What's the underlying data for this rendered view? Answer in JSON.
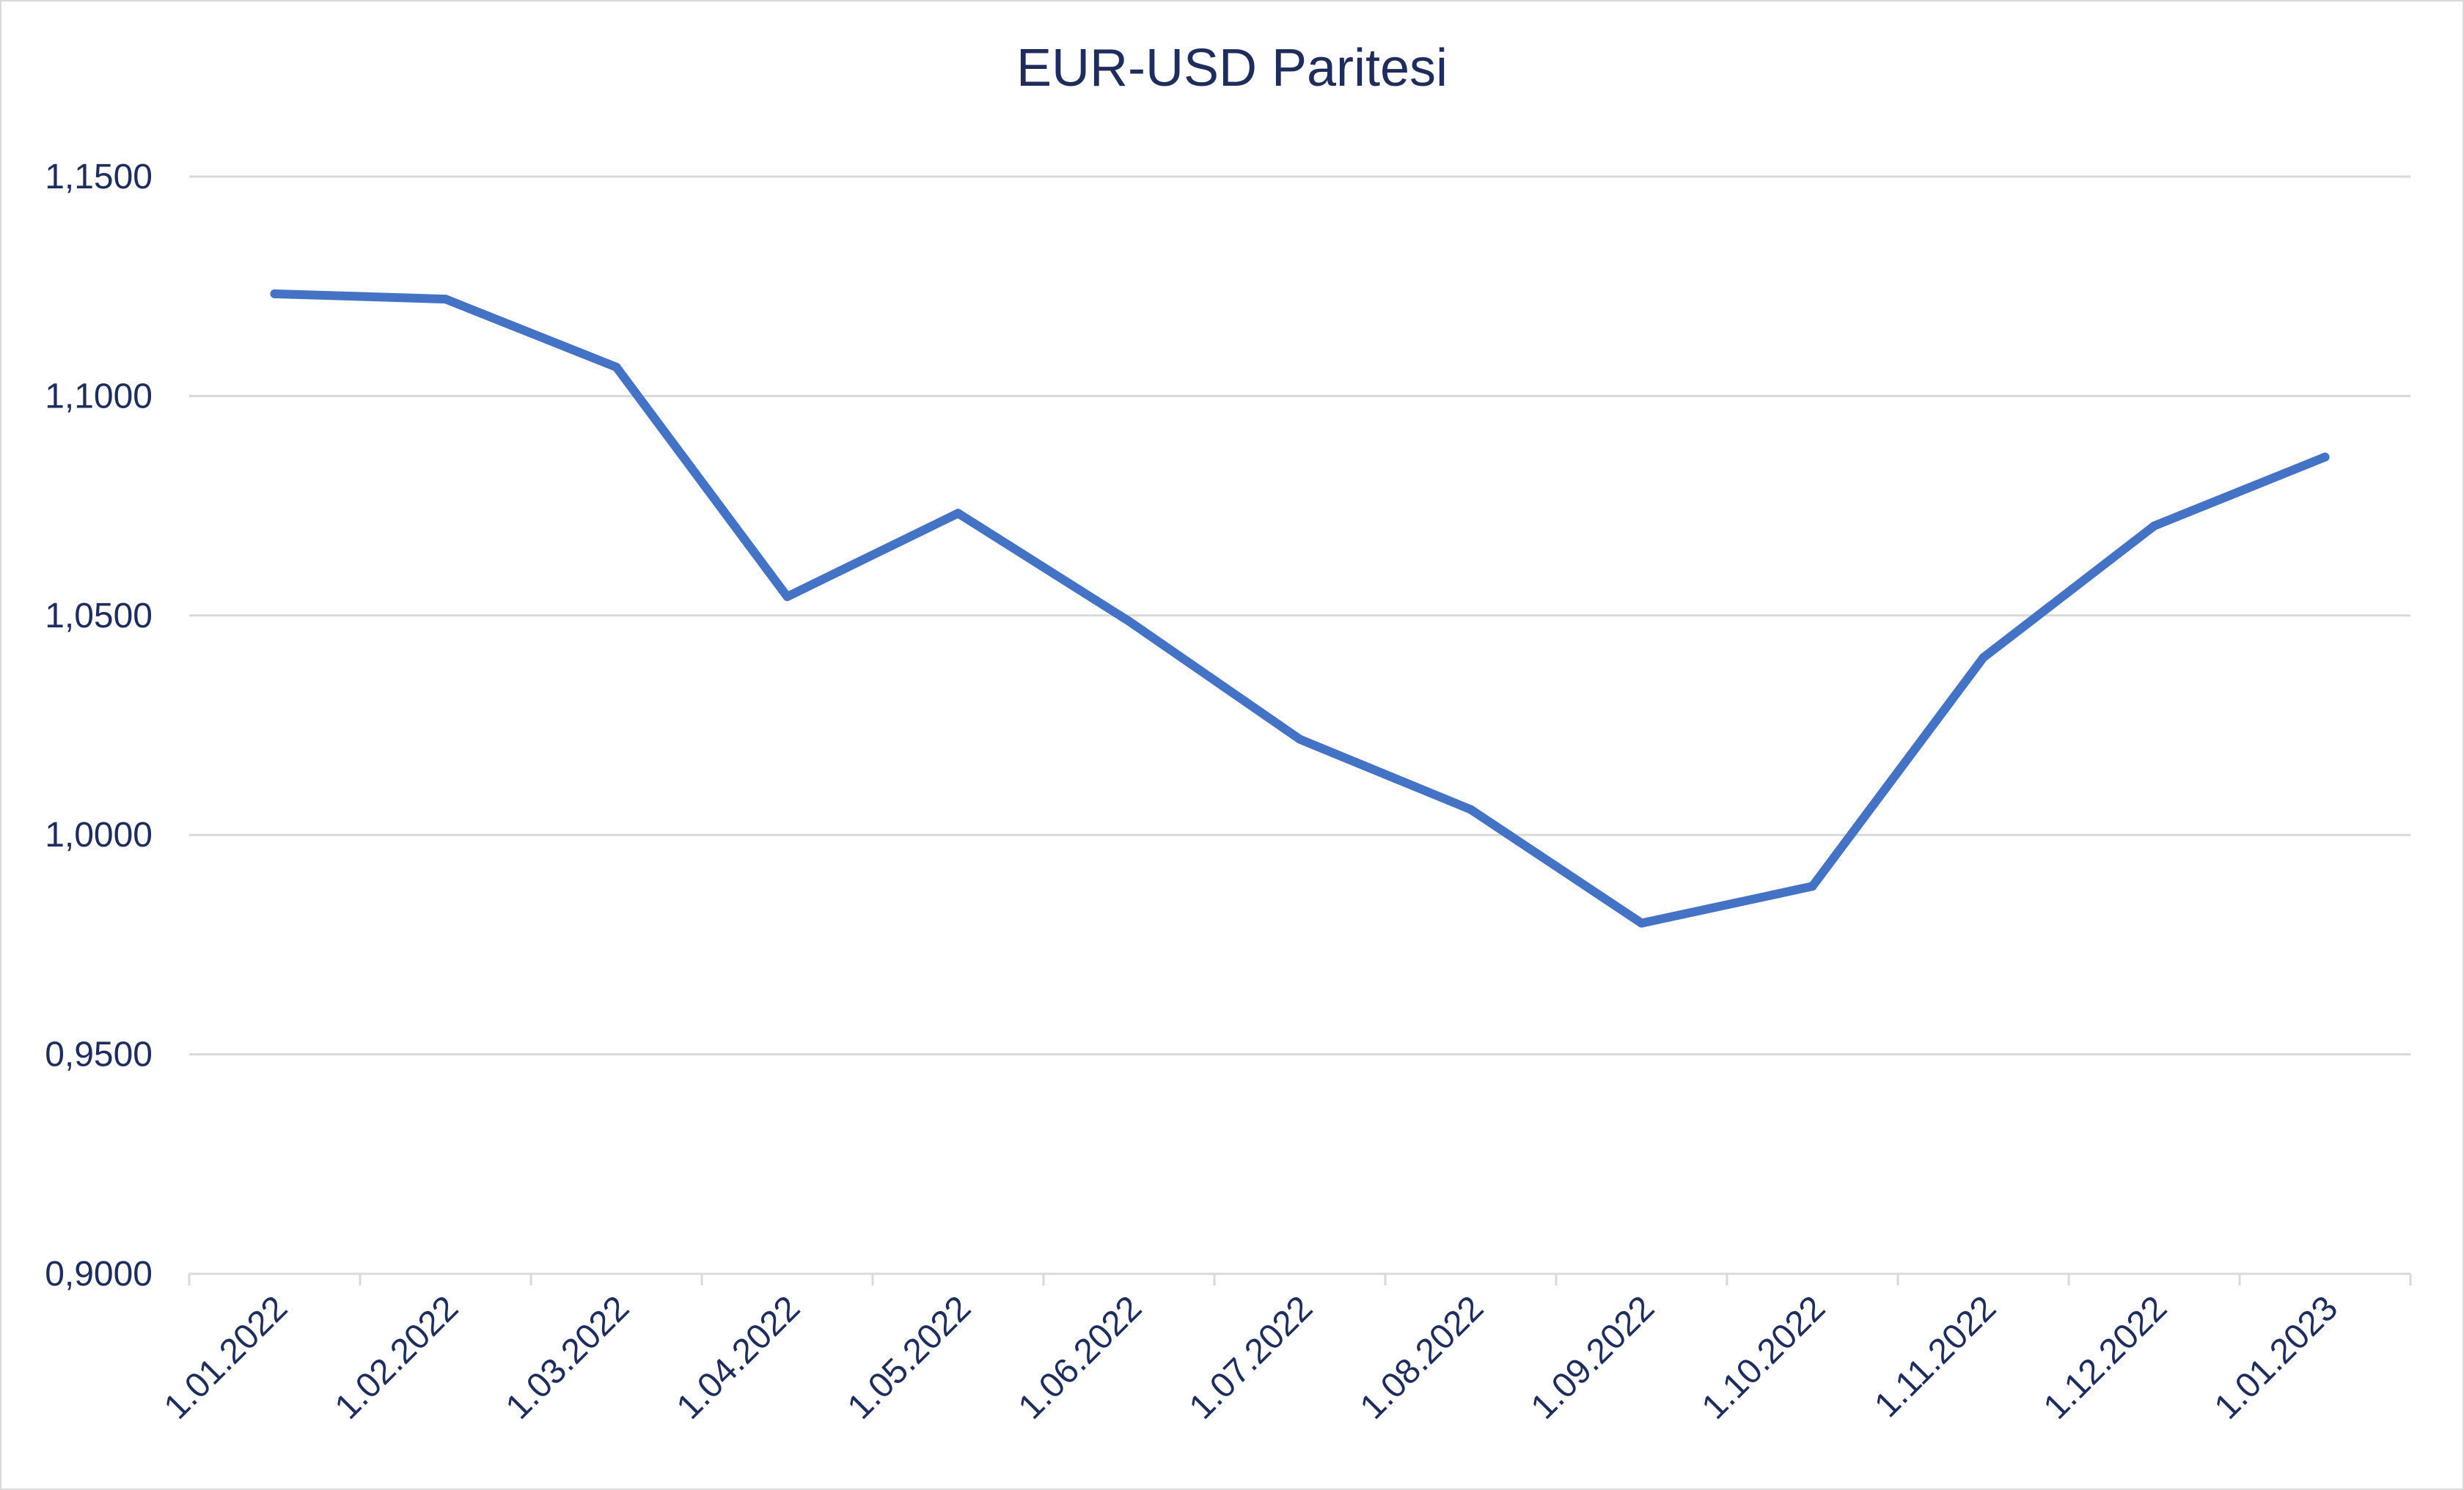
{
  "chart_data": {
    "type": "line",
    "title": "EUR-USD Paritesi",
    "xlabel": "",
    "ylabel": "",
    "ylim": [
      0.9,
      1.15
    ],
    "y_ticks": [
      "0,9000",
      "0,9500",
      "1,0000",
      "1,0500",
      "1,1000",
      "1,1500"
    ],
    "y_tick_values": [
      0.9,
      0.95,
      1.0,
      1.05,
      1.1,
      1.15
    ],
    "categories": [
      "1.01.2022",
      "1.02.2022",
      "1.03.2022",
      "1.04.2022",
      "1.05.2022",
      "1.06.2022",
      "1.07.2022",
      "1.08.2022",
      "1.09.2022",
      "1.10.2022",
      "1.11.2022",
      "1.12.2022",
      "1.01.2023"
    ],
    "series": [
      {
        "values": [
          1.1233,
          1.1221,
          1.1066,
          1.0543,
          1.0733,
          1.0487,
          1.0218,
          1.0058,
          0.9799,
          0.9883,
          1.0404,
          1.0704,
          1.0861
        ],
        "color": "#4472c4"
      }
    ],
    "grid": true,
    "legend": "none",
    "colors": {
      "gridline": "#d9d9d9",
      "text": "#1f2d5c",
      "line": "#4472c4"
    }
  }
}
